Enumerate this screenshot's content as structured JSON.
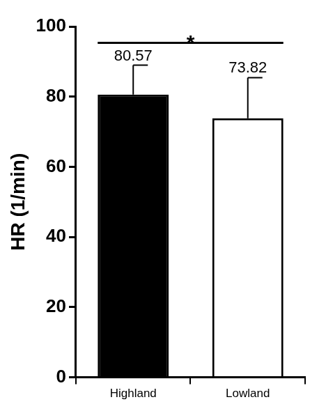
{
  "chart_data": {
    "type": "bar",
    "y_label": "HR (1/min)",
    "categories": [
      "Highland",
      "Lowland"
    ],
    "values": [
      80.57,
      73.82
    ],
    "errors": [
      8.4,
      11.6
    ],
    "colors": [
      "#000000",
      "#ffffff"
    ],
    "ylim": [
      0,
      100
    ],
    "yticks": [
      0,
      20,
      40,
      60,
      80,
      100
    ],
    "grid": false,
    "data_labels": true,
    "annotations": [
      {
        "text": "*",
        "between": [
          "Highland",
          "Lowland"
        ]
      }
    ]
  }
}
